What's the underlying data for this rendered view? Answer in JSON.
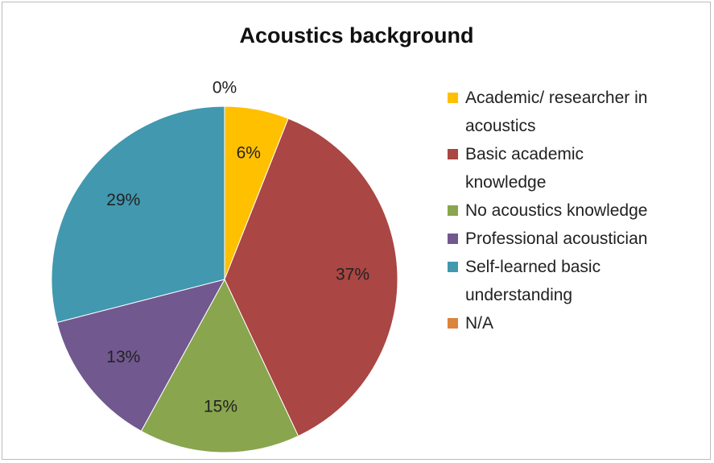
{
  "chart_data": {
    "type": "pie",
    "title": "Acoustics background",
    "categories": [
      "Academic/ researcher in acoustics",
      "Basic academic knowledge",
      "No acoustics knowledge",
      "Professional acoustician",
      "Self-learned basic understanding",
      "N/A"
    ],
    "values": [
      6,
      37,
      15,
      13,
      29,
      0
    ],
    "value_labels": [
      "6%",
      "37%",
      "15%",
      "13%",
      "29%",
      "0%"
    ],
    "colors": [
      "#ffc000",
      "#aa4643",
      "#89a54e",
      "#71588f",
      "#4198af",
      "#db843d"
    ],
    "legend": "right"
  }
}
